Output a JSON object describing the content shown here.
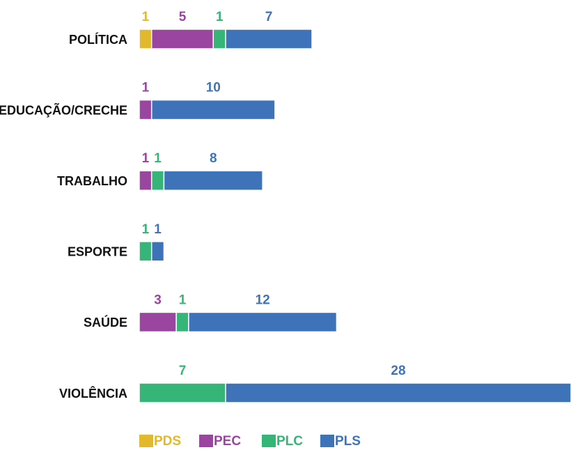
{
  "chart_data": {
    "type": "stacked-bar-horizontal",
    "categories": [
      "POLÍTICA",
      "EDUCAÇÃO/CRECHE",
      "TRABALHO",
      "ESPORTE",
      "SAÚDE",
      "VIOLÊNCIA"
    ],
    "series": [
      {
        "name": "PDS",
        "color": "#e2b92c",
        "values": [
          1,
          null,
          null,
          null,
          null,
          null
        ]
      },
      {
        "name": "PEC",
        "color": "#9a45a0",
        "values": [
          5,
          1,
          1,
          null,
          3,
          null
        ]
      },
      {
        "name": "PLC",
        "color": "#35b577",
        "values": [
          1,
          null,
          1,
          1,
          1,
          7
        ]
      },
      {
        "name": "PLS",
        "color": "#3f73b9",
        "values": [
          7,
          10,
          8,
          1,
          12,
          28
        ]
      }
    ],
    "legend": "bottom"
  }
}
